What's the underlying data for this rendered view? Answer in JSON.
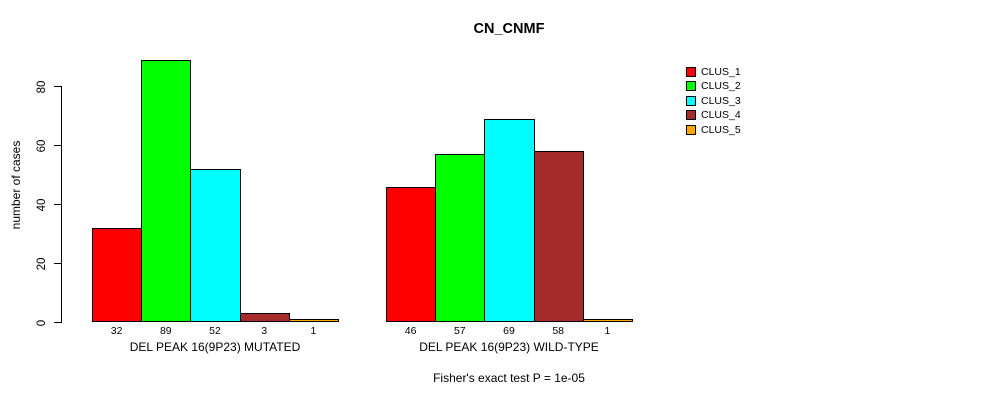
{
  "chart_data": {
    "type": "bar",
    "title": "CN_CNMF",
    "ylabel": "number of cases",
    "xlabel": "",
    "yticks": [
      0,
      20,
      40,
      60,
      80
    ],
    "ylim": [
      0,
      89
    ],
    "grid": false,
    "legend_position": "right-outside",
    "categories": [
      "DEL PEAK 16(9P23) MUTATED",
      "DEL PEAK 16(9P23) WILD-TYPE"
    ],
    "series": [
      {
        "name": "CLUS_1",
        "color": "#FF0000",
        "values": [
          32,
          46
        ]
      },
      {
        "name": "CLUS_2",
        "color": "#00FF00",
        "values": [
          89,
          57
        ]
      },
      {
        "name": "CLUS_3",
        "color": "#00FFFF",
        "values": [
          52,
          69
        ]
      },
      {
        "name": "CLUS_4",
        "color": "#A52A2A",
        "values": [
          3,
          58
        ]
      },
      {
        "name": "CLUS_5",
        "color": "#FFA500",
        "values": [
          1,
          1
        ]
      }
    ],
    "bar_value_labels": [
      [
        "32",
        "89",
        "52",
        "3",
        "1"
      ],
      [
        "46",
        "57",
        "69",
        "58",
        "1"
      ]
    ],
    "annotation": "Fisher's exact test P = 1e-05"
  },
  "colors": {
    "background": "#FFFFFF",
    "axis": "#000000",
    "bar_border": "#000000",
    "text": "#000000"
  }
}
